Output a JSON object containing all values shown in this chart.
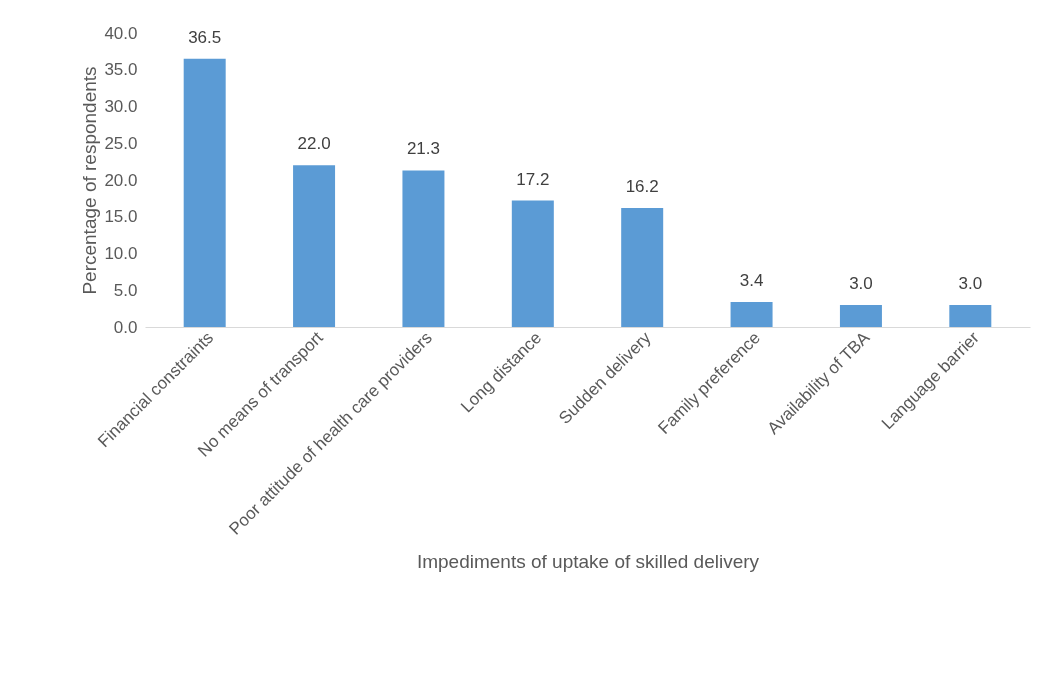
{
  "chart_data": {
    "type": "bar",
    "xlabel": "Impediments  of uptake of skilled delivery",
    "ylabel": "Percentage of respondents",
    "categories": [
      "Financial constraints",
      "No means of transport",
      "Poor attitude of health care providers",
      "Long distance",
      "Sudden delivery",
      "Family preference",
      "Availability of TBA",
      "Language barrier"
    ],
    "values": [
      36.5,
      22.0,
      21.3,
      17.2,
      16.2,
      3.4,
      3.0,
      3.0
    ],
    "value_labels": [
      "36.5",
      "22.0",
      "21.3",
      "17.2",
      "16.2",
      "3.4",
      "3.0",
      "3.0"
    ],
    "color": "#5b9bd5",
    "ylim": [
      0,
      40
    ],
    "yticks": [
      {
        "value": 0,
        "label": "0.0"
      },
      {
        "value": 5,
        "label": "5.0"
      },
      {
        "value": 10,
        "label": "10.0"
      },
      {
        "value": 15,
        "label": "15.0"
      },
      {
        "value": 20,
        "label": "20.0"
      },
      {
        "value": 25,
        "label": "25.0"
      },
      {
        "value": 30,
        "label": "30.0"
      },
      {
        "value": 35,
        "label": "35.0"
      },
      {
        "value": 40,
        "label": "40.0"
      }
    ]
  }
}
